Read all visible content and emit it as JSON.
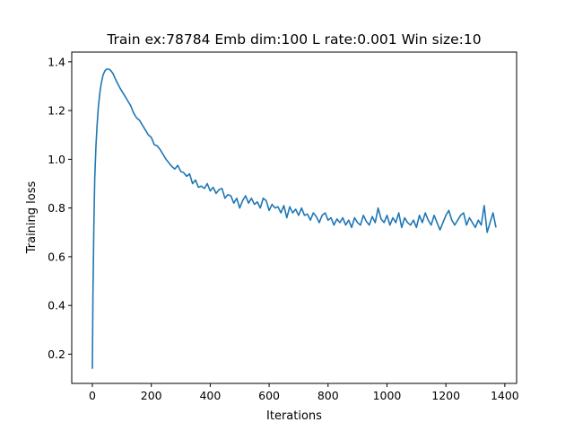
{
  "chart_data": {
    "type": "line",
    "title": "Train ex:78784 Emb dim:100 L rate:0.001 Win size:10",
    "xlabel": "Iterations",
    "ylabel": "Training loss",
    "xlim": [
      -70,
      1440
    ],
    "ylim": [
      0.08,
      1.44
    ],
    "xticks": [
      0,
      200,
      400,
      600,
      800,
      1000,
      1200,
      1400
    ],
    "yticks": [
      0.2,
      0.4,
      0.6,
      0.8,
      1.0,
      1.2,
      1.4
    ],
    "xtick_labels": [
      "0",
      "200",
      "400",
      "600",
      "800",
      "1000",
      "1200",
      "1400"
    ],
    "ytick_labels": [
      "0.2",
      "0.4",
      "0.6",
      "0.8",
      "1.0",
      "1.2",
      "1.4"
    ],
    "grid": false,
    "line_color": "#1f77b4",
    "series": [
      {
        "x": [
          0,
          2,
          5,
          8,
          12,
          16,
          20,
          25,
          30,
          36,
          42,
          48,
          55,
          62,
          70,
          78,
          86,
          95,
          100,
          110,
          120,
          130,
          140,
          150,
          160,
          170,
          180,
          190,
          200,
          210,
          220,
          230,
          240,
          250,
          260,
          270,
          280,
          290,
          300,
          310,
          320,
          330,
          340,
          350,
          360,
          370,
          380,
          390,
          400,
          410,
          420,
          430,
          440,
          450,
          460,
          470,
          480,
          490,
          500,
          510,
          520,
          530,
          540,
          550,
          560,
          570,
          580,
          590,
          600,
          610,
          620,
          630,
          640,
          650,
          660,
          670,
          680,
          690,
          700,
          710,
          720,
          730,
          740,
          750,
          760,
          770,
          780,
          790,
          800,
          810,
          820,
          830,
          840,
          850,
          860,
          870,
          880,
          890,
          900,
          910,
          920,
          930,
          940,
          950,
          960,
          970,
          980,
          990,
          1000,
          1010,
          1020,
          1030,
          1040,
          1050,
          1060,
          1070,
          1080,
          1090,
          1100,
          1110,
          1120,
          1130,
          1140,
          1150,
          1160,
          1170,
          1180,
          1190,
          1200,
          1210,
          1220,
          1230,
          1240,
          1250,
          1260,
          1270,
          1280,
          1290,
          1300,
          1310,
          1320,
          1330,
          1340,
          1350,
          1360,
          1370
        ],
        "y": [
          0.14,
          0.45,
          0.72,
          0.92,
          1.05,
          1.14,
          1.21,
          1.27,
          1.31,
          1.345,
          1.362,
          1.37,
          1.37,
          1.365,
          1.352,
          1.33,
          1.31,
          1.29,
          1.28,
          1.26,
          1.24,
          1.22,
          1.19,
          1.17,
          1.16,
          1.14,
          1.12,
          1.1,
          1.09,
          1.06,
          1.055,
          1.04,
          1.02,
          1.0,
          0.985,
          0.97,
          0.96,
          0.975,
          0.95,
          0.945,
          0.93,
          0.94,
          0.9,
          0.915,
          0.885,
          0.89,
          0.88,
          0.9,
          0.87,
          0.885,
          0.86,
          0.875,
          0.88,
          0.84,
          0.855,
          0.85,
          0.82,
          0.84,
          0.8,
          0.83,
          0.85,
          0.82,
          0.84,
          0.815,
          0.825,
          0.8,
          0.84,
          0.83,
          0.79,
          0.815,
          0.8,
          0.805,
          0.78,
          0.81,
          0.76,
          0.805,
          0.78,
          0.795,
          0.77,
          0.8,
          0.77,
          0.775,
          0.75,
          0.78,
          0.765,
          0.74,
          0.77,
          0.78,
          0.75,
          0.76,
          0.73,
          0.755,
          0.74,
          0.76,
          0.73,
          0.75,
          0.72,
          0.76,
          0.74,
          0.73,
          0.77,
          0.745,
          0.73,
          0.765,
          0.74,
          0.8,
          0.755,
          0.74,
          0.77,
          0.73,
          0.76,
          0.74,
          0.78,
          0.72,
          0.76,
          0.74,
          0.73,
          0.75,
          0.72,
          0.77,
          0.74,
          0.78,
          0.75,
          0.73,
          0.77,
          0.74,
          0.71,
          0.74,
          0.77,
          0.79,
          0.75,
          0.73,
          0.75,
          0.77,
          0.78,
          0.73,
          0.76,
          0.74,
          0.72,
          0.75,
          0.73,
          0.81,
          0.7,
          0.74,
          0.78,
          0.72
        ]
      }
    ]
  }
}
